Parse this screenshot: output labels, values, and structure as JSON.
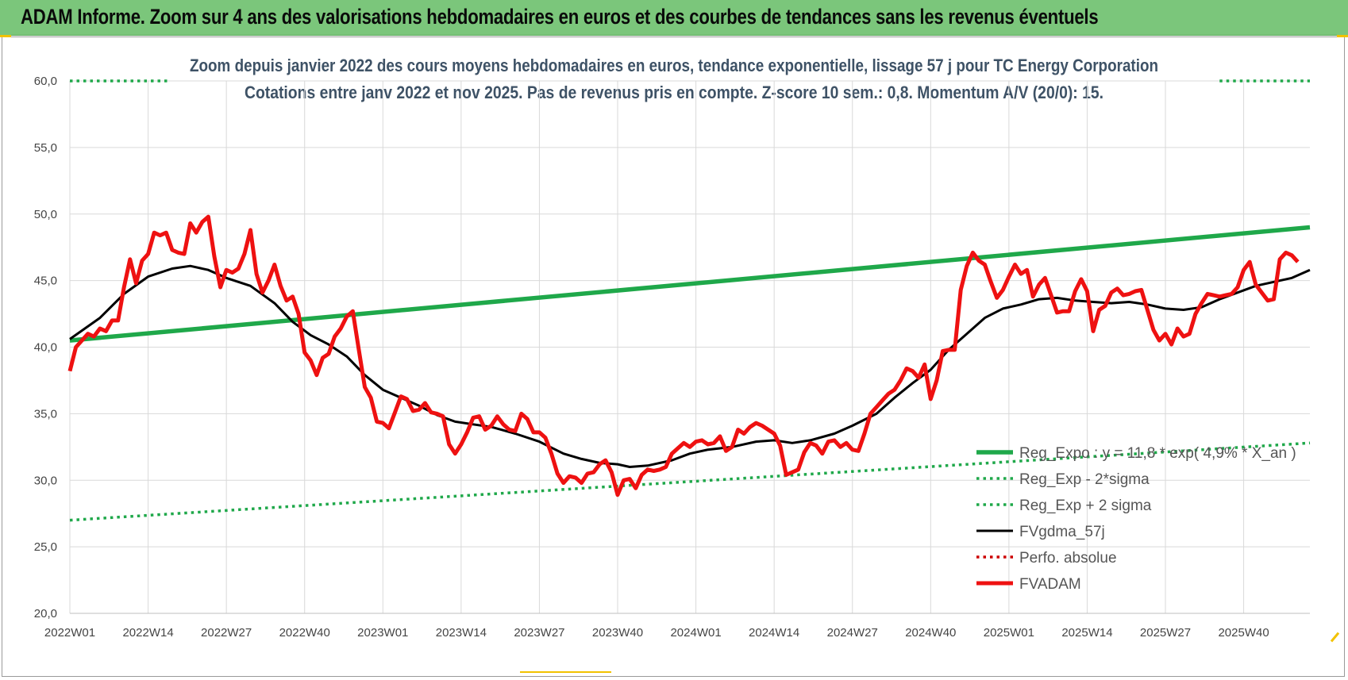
{
  "window": {
    "banner_title": "ADAM Informe. Zoom sur 4 ans des valorisations hebdomadaires en euros et des courbes de tendances sans les revenus éventuels"
  },
  "colors": {
    "banner_bg": "#7bc67b",
    "trend_green": "#1fa84a",
    "smooth_black": "#000000",
    "price_red": "#ee1111",
    "perf_dotted_red": "#cc0000"
  },
  "chart_data": {
    "type": "line",
    "title": "Zoom depuis janvier 2022 des cours moyens hebdomadaires en euros, tendance exponentielle, lissage 57 j pour TC Energy Corporation",
    "subtitle": "Cotations entre janv 2022 et nov 2025. Pas de revenus pris en compte. Z-score 10 sem.: 0,8. Momentum A/V (20/0): 15.",
    "ylim": [
      20,
      60
    ],
    "y_ticks": [
      "20,0",
      "25,0",
      "30,0",
      "35,0",
      "40,0",
      "45,0",
      "50,0",
      "55,0",
      "60,0"
    ],
    "x_ticks": [
      "2022W01",
      "2022W14",
      "2022W27",
      "2022W40",
      "2023W01",
      "2023W14",
      "2023W27",
      "2023W40",
      "2024W01",
      "2024W14",
      "2024W27",
      "2024W40",
      "2025W01",
      "2025W14",
      "2025W27",
      "2025W40"
    ],
    "x_range_weeks": [
      0,
      206
    ],
    "grid": true,
    "legend_position": "bottom-right",
    "series": [
      {
        "name": "Reg_Expo : y = 11,8 * exp( 4,9% * X_an )",
        "style": "solid-thick",
        "color": "#1fa84a",
        "points": [
          [
            0,
            40.5
          ],
          [
            206,
            49.0
          ]
        ]
      },
      {
        "name": "Reg_Exp - 2*sigma",
        "style": "dotted",
        "color": "#1fa84a",
        "points": [
          [
            0,
            27.0
          ],
          [
            206,
            32.8
          ]
        ]
      },
      {
        "name": "Reg_Exp + 2 sigma",
        "style": "dotted",
        "color": "#1fa84a",
        "points": [
          [
            0,
            60.0
          ],
          [
            206,
            60.0
          ]
        ]
      },
      {
        "name": "FVgdma_57j",
        "style": "solid",
        "color": "#000000",
        "points": [
          [
            0,
            40.6
          ],
          [
            5,
            42.2
          ],
          [
            9,
            44.0
          ],
          [
            13,
            45.3
          ],
          [
            17,
            45.9
          ],
          [
            20,
            46.1
          ],
          [
            23,
            45.8
          ],
          [
            26,
            45.2
          ],
          [
            30,
            44.6
          ],
          [
            34,
            43.3
          ],
          [
            37,
            41.9
          ],
          [
            40,
            40.9
          ],
          [
            43,
            40.2
          ],
          [
            46,
            39.3
          ],
          [
            49,
            37.9
          ],
          [
            52,
            36.8
          ],
          [
            55,
            36.2
          ],
          [
            58,
            35.6
          ],
          [
            61,
            34.9
          ],
          [
            64,
            34.4
          ],
          [
            67,
            34.2
          ],
          [
            70,
            34.0
          ],
          [
            74,
            33.5
          ],
          [
            78,
            32.9
          ],
          [
            82,
            32.0
          ],
          [
            85,
            31.6
          ],
          [
            88,
            31.3
          ],
          [
            91,
            31.2
          ],
          [
            93,
            31.0
          ],
          [
            96,
            31.1
          ],
          [
            100,
            31.5
          ],
          [
            103,
            32.0
          ],
          [
            106,
            32.3
          ],
          [
            110,
            32.5
          ],
          [
            114,
            32.9
          ],
          [
            117,
            33.0
          ],
          [
            120,
            32.8
          ],
          [
            123,
            33.0
          ],
          [
            127,
            33.5
          ],
          [
            130,
            34.1
          ],
          [
            134,
            35.0
          ],
          [
            137,
            36.2
          ],
          [
            140,
            37.3
          ],
          [
            143,
            38.3
          ],
          [
            146,
            39.8
          ],
          [
            149,
            41.0
          ],
          [
            152,
            42.2
          ],
          [
            155,
            42.9
          ],
          [
            158,
            43.2
          ],
          [
            161,
            43.6
          ],
          [
            164,
            43.7
          ],
          [
            167,
            43.5
          ],
          [
            170,
            43.4
          ],
          [
            173,
            43.3
          ],
          [
            176,
            43.4
          ],
          [
            179,
            43.2
          ],
          [
            182,
            42.9
          ],
          [
            185,
            42.8
          ],
          [
            188,
            43.0
          ],
          [
            191,
            43.6
          ],
          [
            194,
            44.1
          ],
          [
            197,
            44.6
          ],
          [
            200,
            44.9
          ],
          [
            203,
            45.2
          ],
          [
            206,
            45.8
          ]
        ]
      },
      {
        "name": "Perfo. absolue",
        "style": "dotted",
        "color": "#cc0000",
        "points": []
      },
      {
        "name": "FVADAM",
        "style": "solid-thick",
        "color": "#ee1111",
        "points": [
          [
            0,
            38.2
          ],
          [
            1,
            40.0
          ],
          [
            2,
            40.5
          ],
          [
            3,
            41.0
          ],
          [
            4,
            40.8
          ],
          [
            5,
            41.4
          ],
          [
            6,
            41.2
          ],
          [
            7,
            42.0
          ],
          [
            8,
            42.0
          ],
          [
            9,
            44.5
          ],
          [
            10,
            46.6
          ],
          [
            11,
            44.8
          ],
          [
            12,
            46.5
          ],
          [
            13,
            47.0
          ],
          [
            14,
            48.6
          ],
          [
            15,
            48.4
          ],
          [
            16,
            48.6
          ],
          [
            17,
            47.3
          ],
          [
            18,
            47.1
          ],
          [
            19,
            47.0
          ],
          [
            20,
            49.3
          ],
          [
            21,
            48.6
          ],
          [
            22,
            49.4
          ],
          [
            23,
            49.8
          ],
          [
            24,
            46.8
          ],
          [
            25,
            44.5
          ],
          [
            26,
            45.8
          ],
          [
            27,
            45.6
          ],
          [
            28,
            45.9
          ],
          [
            29,
            47.0
          ],
          [
            30,
            48.8
          ],
          [
            31,
            45.5
          ],
          [
            32,
            44.1
          ],
          [
            33,
            45.0
          ],
          [
            34,
            46.2
          ],
          [
            35,
            44.6
          ],
          [
            36,
            43.5
          ],
          [
            37,
            43.8
          ],
          [
            38,
            42.5
          ],
          [
            39,
            39.6
          ],
          [
            40,
            39.0
          ],
          [
            41,
            37.9
          ],
          [
            42,
            39.2
          ],
          [
            43,
            39.5
          ],
          [
            44,
            40.8
          ],
          [
            45,
            41.4
          ],
          [
            46,
            42.3
          ],
          [
            47,
            42.7
          ],
          [
            48,
            39.8
          ],
          [
            49,
            37.0
          ],
          [
            50,
            36.2
          ],
          [
            51,
            34.4
          ],
          [
            52,
            34.3
          ],
          [
            53,
            33.9
          ],
          [
            54,
            35.1
          ],
          [
            55,
            36.3
          ],
          [
            56,
            36.1
          ],
          [
            57,
            35.2
          ],
          [
            58,
            35.3
          ],
          [
            59,
            35.8
          ],
          [
            60,
            35.1
          ],
          [
            61,
            35.0
          ],
          [
            62,
            34.8
          ],
          [
            63,
            32.7
          ],
          [
            64,
            32.0
          ],
          [
            65,
            32.7
          ],
          [
            66,
            33.6
          ],
          [
            67,
            34.7
          ],
          [
            68,
            34.8
          ],
          [
            69,
            33.8
          ],
          [
            70,
            34.1
          ],
          [
            71,
            34.8
          ],
          [
            72,
            34.2
          ],
          [
            73,
            33.8
          ],
          [
            74,
            33.7
          ],
          [
            75,
            35.0
          ],
          [
            76,
            34.6
          ],
          [
            77,
            33.6
          ],
          [
            78,
            33.6
          ],
          [
            79,
            33.2
          ],
          [
            80,
            32.0
          ],
          [
            81,
            30.5
          ],
          [
            82,
            29.8
          ],
          [
            83,
            30.3
          ],
          [
            84,
            30.2
          ],
          [
            85,
            29.8
          ],
          [
            86,
            30.5
          ],
          [
            87,
            30.6
          ],
          [
            88,
            31.2
          ],
          [
            89,
            31.5
          ],
          [
            90,
            30.6
          ],
          [
            91,
            28.9
          ],
          [
            92,
            30.0
          ],
          [
            93,
            30.1
          ],
          [
            94,
            29.4
          ],
          [
            95,
            30.4
          ],
          [
            96,
            30.8
          ],
          [
            97,
            30.7
          ],
          [
            98,
            30.8
          ],
          [
            99,
            31.0
          ],
          [
            100,
            32.0
          ],
          [
            101,
            32.4
          ],
          [
            102,
            32.8
          ],
          [
            103,
            32.5
          ],
          [
            104,
            32.9
          ],
          [
            105,
            33.0
          ],
          [
            106,
            32.7
          ],
          [
            107,
            32.8
          ],
          [
            108,
            33.3
          ],
          [
            109,
            32.2
          ],
          [
            110,
            32.5
          ],
          [
            111,
            33.8
          ],
          [
            112,
            33.5
          ],
          [
            113,
            34.0
          ],
          [
            114,
            34.3
          ],
          [
            115,
            34.1
          ],
          [
            116,
            33.8
          ],
          [
            117,
            33.5
          ],
          [
            118,
            32.6
          ],
          [
            119,
            30.4
          ],
          [
            120,
            30.6
          ],
          [
            121,
            30.8
          ],
          [
            122,
            32.1
          ],
          [
            123,
            32.8
          ],
          [
            124,
            32.6
          ],
          [
            125,
            32.0
          ],
          [
            126,
            32.9
          ],
          [
            127,
            33.0
          ],
          [
            128,
            32.5
          ],
          [
            129,
            32.8
          ],
          [
            130,
            32.3
          ],
          [
            131,
            32.2
          ],
          [
            132,
            33.5
          ],
          [
            133,
            35.0
          ],
          [
            134,
            35.5
          ],
          [
            135,
            36.0
          ],
          [
            136,
            36.5
          ],
          [
            137,
            36.8
          ],
          [
            138,
            37.5
          ],
          [
            139,
            38.4
          ],
          [
            140,
            38.2
          ],
          [
            141,
            37.7
          ],
          [
            142,
            38.7
          ],
          [
            143,
            36.1
          ],
          [
            144,
            37.5
          ],
          [
            145,
            39.7
          ],
          [
            146,
            39.8
          ],
          [
            147,
            39.8
          ],
          [
            148,
            44.3
          ],
          [
            149,
            46.1
          ],
          [
            150,
            47.1
          ],
          [
            151,
            46.5
          ],
          [
            152,
            46.2
          ],
          [
            153,
            44.9
          ],
          [
            154,
            43.7
          ],
          [
            155,
            44.3
          ],
          [
            156,
            45.3
          ],
          [
            157,
            46.2
          ],
          [
            158,
            45.5
          ],
          [
            159,
            45.8
          ],
          [
            160,
            43.8
          ],
          [
            161,
            44.7
          ],
          [
            162,
            45.2
          ],
          [
            163,
            43.9
          ],
          [
            164,
            42.6
          ],
          [
            165,
            42.7
          ],
          [
            166,
            42.7
          ],
          [
            167,
            44.2
          ],
          [
            168,
            45.1
          ],
          [
            169,
            44.2
          ],
          [
            170,
            41.2
          ],
          [
            171,
            42.8
          ],
          [
            172,
            43.1
          ],
          [
            173,
            44.1
          ],
          [
            174,
            44.4
          ],
          [
            175,
            43.9
          ],
          [
            176,
            44.0
          ],
          [
            177,
            44.2
          ],
          [
            178,
            44.3
          ],
          [
            179,
            42.8
          ],
          [
            180,
            41.3
          ],
          [
            181,
            40.5
          ],
          [
            182,
            41.0
          ],
          [
            183,
            40.2
          ],
          [
            184,
            41.4
          ],
          [
            185,
            40.8
          ],
          [
            186,
            41.0
          ],
          [
            187,
            42.5
          ],
          [
            188,
            43.3
          ],
          [
            189,
            44.0
          ],
          [
            190,
            43.9
          ],
          [
            191,
            43.8
          ],
          [
            192,
            43.9
          ],
          [
            193,
            44.0
          ],
          [
            194,
            44.5
          ],
          [
            195,
            45.8
          ],
          [
            196,
            46.4
          ],
          [
            197,
            44.7
          ],
          [
            198,
            44.1
          ],
          [
            199,
            43.5
          ],
          [
            200,
            43.6
          ],
          [
            201,
            46.6
          ],
          [
            202,
            47.1
          ],
          [
            203,
            46.9
          ],
          [
            204,
            46.4
          ]
        ]
      }
    ]
  }
}
